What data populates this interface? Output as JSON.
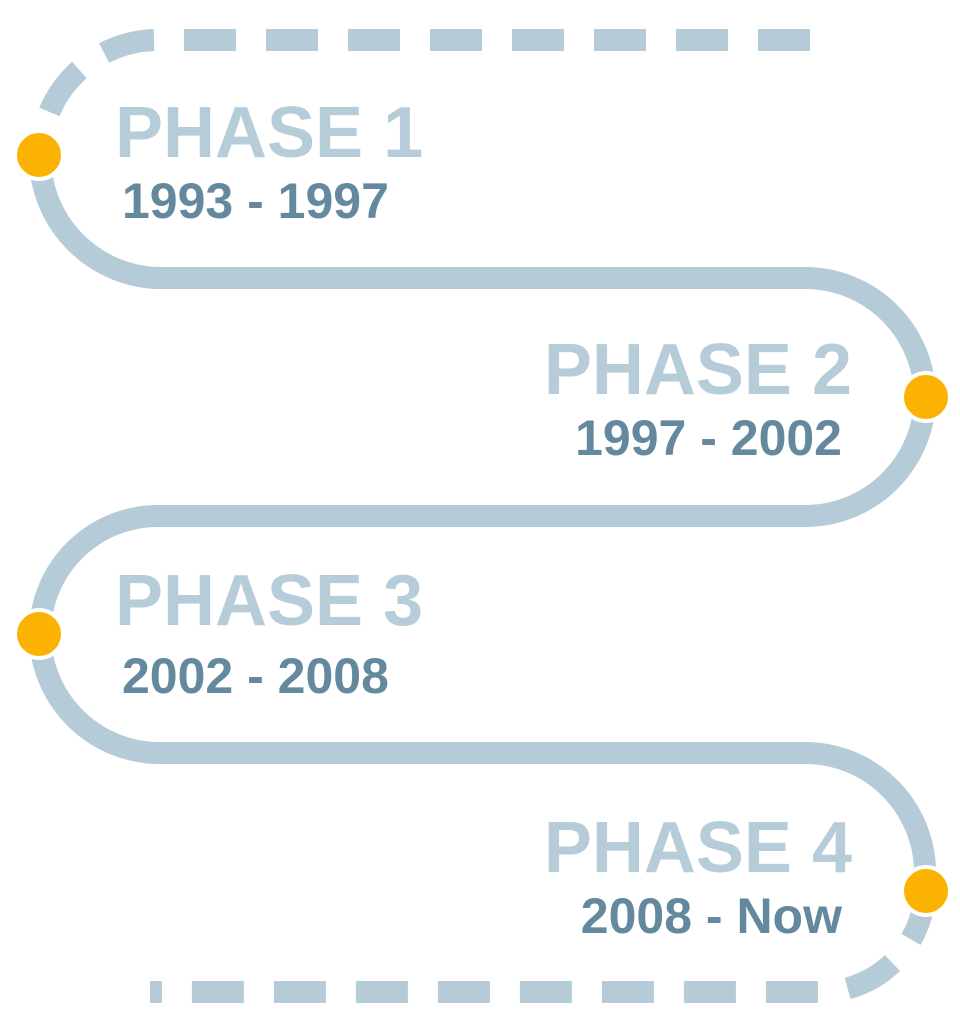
{
  "phases": [
    {
      "title": "PHASE 1",
      "dates": "1993 - 1997"
    },
    {
      "title": "PHASE 2",
      "dates": "1997 - 2002"
    },
    {
      "title": "PHASE 3",
      "dates": "2002 - 2008"
    },
    {
      "title": "PHASE 4",
      "dates": "2008 - Now"
    }
  ],
  "colors": {
    "path": "#b5cbd8",
    "marker": "#fbb202",
    "title": "#b7ccd9",
    "dates": "#64899f"
  }
}
